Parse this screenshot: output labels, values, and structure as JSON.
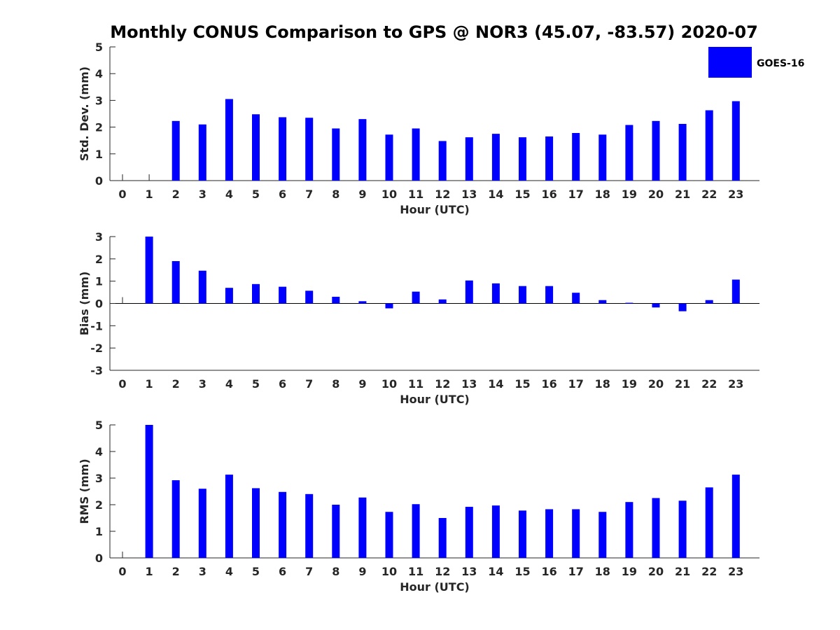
{
  "title": "Monthly CONUS Comparison to GPS @ NOR3 (45.07, -83.57) 2020-07",
  "legend": {
    "label": "GOES-16",
    "color": "#0000ff",
    "placement": "top-right"
  },
  "chart_data": [
    {
      "type": "bar",
      "name": "std-dev",
      "xlabel": "Hour (UTC)",
      "ylabel": "Std. Dev. (mm)",
      "ylim": [
        0,
        5
      ],
      "yticks": [
        0,
        1,
        2,
        3,
        4,
        5
      ],
      "categories": [
        "0",
        "1",
        "2",
        "3",
        "4",
        "5",
        "6",
        "7",
        "8",
        "9",
        "10",
        "11",
        "12",
        "13",
        "14",
        "15",
        "16",
        "17",
        "18",
        "19",
        "20",
        "21",
        "22",
        "23"
      ],
      "values": [
        null,
        null,
        2.23,
        2.1,
        3.05,
        2.48,
        2.37,
        2.35,
        1.95,
        2.3,
        1.72,
        1.95,
        1.48,
        1.62,
        1.75,
        1.62,
        1.65,
        1.78,
        1.72,
        2.08,
        2.23,
        2.12,
        2.63,
        2.97
      ],
      "grid": false
    },
    {
      "type": "bar",
      "name": "bias",
      "xlabel": "Hour (UTC)",
      "ylabel": "Bias (mm)",
      "ylim": [
        -3,
        3
      ],
      "yticks": [
        -3,
        -2,
        -1,
        0,
        1,
        2,
        3
      ],
      "categories": [
        "0",
        "1",
        "2",
        "3",
        "4",
        "5",
        "6",
        "7",
        "8",
        "9",
        "10",
        "11",
        "12",
        "13",
        "14",
        "15",
        "16",
        "17",
        "18",
        "19",
        "20",
        "21",
        "22",
        "23"
      ],
      "values": [
        null,
        3.0,
        1.9,
        1.47,
        0.7,
        0.87,
        0.75,
        0.57,
        0.3,
        0.1,
        -0.22,
        0.53,
        0.18,
        1.03,
        0.9,
        0.78,
        0.78,
        0.48,
        0.15,
        0.03,
        -0.18,
        -0.35,
        0.15,
        1.07
      ],
      "grid": false
    },
    {
      "type": "bar",
      "name": "rms",
      "xlabel": "Hour (UTC)",
      "ylabel": "RMS (mm)",
      "ylim": [
        0,
        5
      ],
      "yticks": [
        0,
        1,
        2,
        3,
        4,
        5
      ],
      "categories": [
        "0",
        "1",
        "2",
        "3",
        "4",
        "5",
        "6",
        "7",
        "8",
        "9",
        "10",
        "11",
        "12",
        "13",
        "14",
        "15",
        "16",
        "17",
        "18",
        "19",
        "20",
        "21",
        "22",
        "23"
      ],
      "values": [
        null,
        5.0,
        2.92,
        2.6,
        3.13,
        2.62,
        2.48,
        2.4,
        2.0,
        2.27,
        1.73,
        2.02,
        1.5,
        1.92,
        1.97,
        1.78,
        1.83,
        1.83,
        1.73,
        2.1,
        2.25,
        2.15,
        2.65,
        3.13
      ],
      "grid": false
    }
  ]
}
